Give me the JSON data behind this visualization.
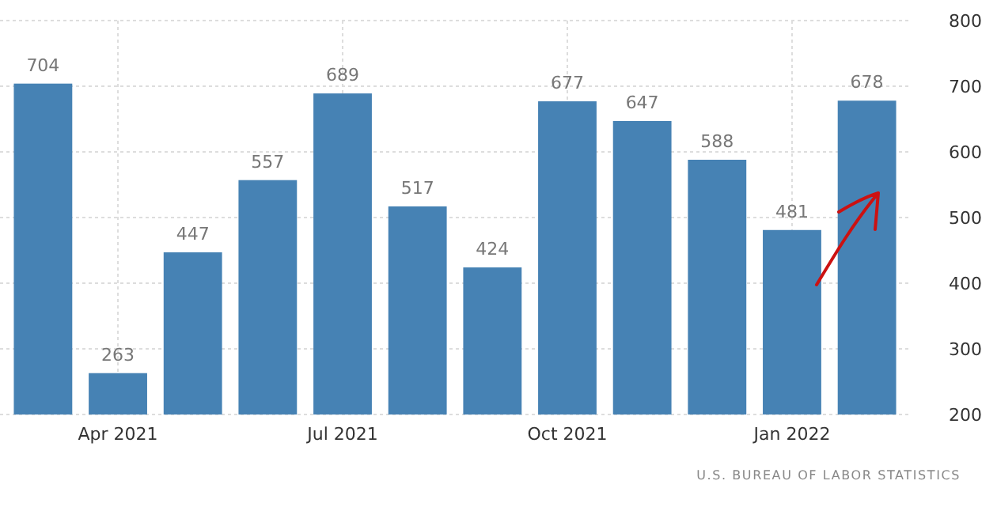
{
  "chart_data": {
    "type": "bar",
    "categories": [
      null,
      "Apr 2021",
      null,
      null,
      "Jul 2021",
      null,
      null,
      "Oct 2021",
      null,
      null,
      "Jan 2022",
      null
    ],
    "values": [
      704,
      263,
      447,
      557,
      689,
      517,
      424,
      677,
      647,
      588,
      481,
      678
    ],
    "color": "#4682b4",
    "data_labels": true,
    "ylim": [
      200,
      800
    ],
    "yticks": [
      200,
      300,
      400,
      500,
      600,
      700,
      800
    ],
    "grid": true,
    "annotations": [
      "U.S. BUREAU OF LABOR STATISTICS"
    ]
  }
}
